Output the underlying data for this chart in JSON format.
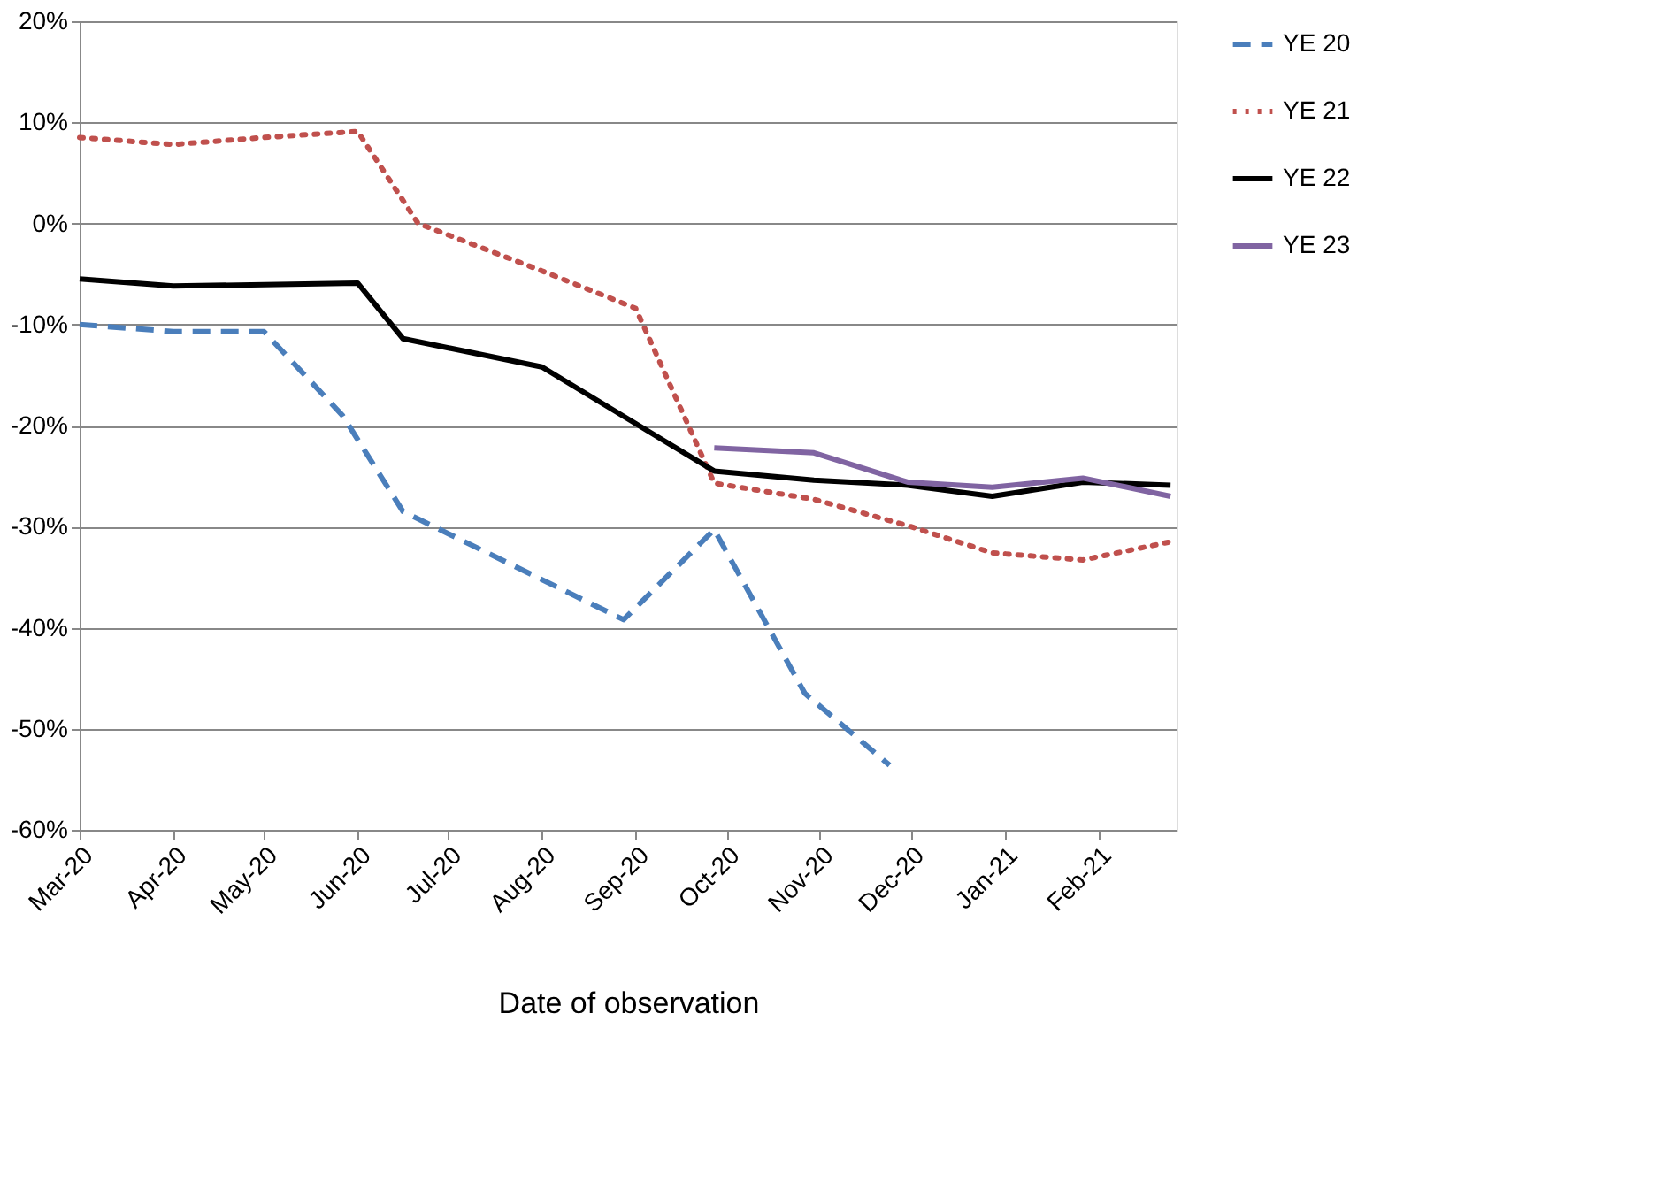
{
  "chart_data": {
    "type": "line",
    "xlabel": "Date of observation",
    "xlim": [
      "2020-03-01",
      "2021-02-27"
    ],
    "xticks": [
      {
        "value": "2020-03-01",
        "label": "Mar-20"
      },
      {
        "value": "2020-04-01",
        "label": "Apr-20"
      },
      {
        "value": "2020-05-01",
        "label": "May-20"
      },
      {
        "value": "2020-06-01",
        "label": "Jun-20"
      },
      {
        "value": "2020-07-01",
        "label": "Jul-20"
      },
      {
        "value": "2020-08-01",
        "label": "Aug-20"
      },
      {
        "value": "2020-09-01",
        "label": "Sep-20"
      },
      {
        "value": "2020-10-01",
        "label": "Oct-20"
      },
      {
        "value": "2020-11-01",
        "label": "Nov-20"
      },
      {
        "value": "2020-12-01",
        "label": "Dec-20"
      },
      {
        "value": "2021-01-01",
        "label": "Jan-21"
      },
      {
        "value": "2021-02-01",
        "label": "Feb-21"
      }
    ],
    "ylim": [
      -60,
      20
    ],
    "yticks": [
      {
        "value": -60,
        "label": "-60%"
      },
      {
        "value": -50,
        "label": "-50%"
      },
      {
        "value": -40,
        "label": "-40%"
      },
      {
        "value": -30,
        "label": "-30%"
      },
      {
        "value": -20,
        "label": "-20%"
      },
      {
        "value": -10,
        "label": "-10%"
      },
      {
        "value": 0,
        "label": "0%"
      },
      {
        "value": 10,
        "label": "10%"
      },
      {
        "value": 20,
        "label": "20%"
      }
    ],
    "grid": "y",
    "legend": "right",
    "marker": "none",
    "series": [
      {
        "name": "YE 20",
        "color": "#4a7ebb",
        "line_style": "dashed",
        "x": [
          "2020-03-01",
          "2020-04-01",
          "2020-05-01",
          "2020-05-27",
          "2020-06-16",
          "2020-08-28",
          "2020-09-27",
          "2020-10-27",
          "2020-11-24"
        ],
        "values": [
          -10.0,
          -10.7,
          -10.7,
          -19,
          -28.5,
          -39.2,
          -30.3,
          -46.5,
          -53.6
        ]
      },
      {
        "name": "YE 21",
        "color": "#c0504d",
        "line_style": "dotted",
        "x": [
          "2020-03-01",
          "2020-04-01",
          "2020-05-01",
          "2020-06-01",
          "2020-06-21",
          "2020-08-01",
          "2020-09-01",
          "2020-09-27",
          "2020-10-30",
          "2020-11-30",
          "2020-12-28",
          "2021-01-27",
          "2021-02-25"
        ],
        "values": [
          8.5,
          7.8,
          8.5,
          9.1,
          0,
          -4.7,
          -8.4,
          -25.7,
          -27.3,
          -29.9,
          -32.6,
          -33.3,
          -31.5
        ]
      },
      {
        "name": "YE 22",
        "color": "#000000",
        "line_style": "solid",
        "x": [
          "2020-03-01",
          "2020-04-01",
          "2020-06-01",
          "2020-06-16",
          "2020-08-01",
          "2020-09-01",
          "2020-09-27",
          "2020-10-30",
          "2020-11-30",
          "2020-12-28",
          "2021-01-27",
          "2021-02-25"
        ],
        "values": [
          -5.5,
          -6.2,
          -5.9,
          -11.4,
          -14.2,
          -19.8,
          -24.5,
          -25.4,
          -25.9,
          -27.0,
          -25.6,
          -25.9
        ]
      },
      {
        "name": "YE 23",
        "color": "#8064a2",
        "line_style": "solid",
        "x": [
          "2020-09-27",
          "2020-10-30",
          "2020-11-30",
          "2020-12-28",
          "2021-01-27",
          "2021-02-25"
        ],
        "values": [
          -22.2,
          -22.7,
          -25.6,
          -26.1,
          -25.2,
          -27.0
        ]
      }
    ]
  }
}
